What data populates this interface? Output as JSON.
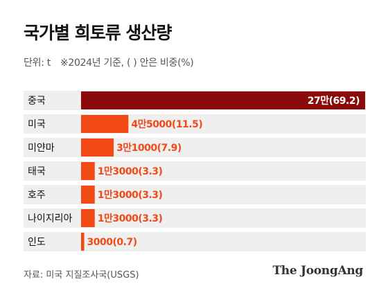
{
  "header": {
    "title": "국가별 희토류 생산량",
    "unit": "단위: t",
    "note": "※2024년 기준, ( ) 안은 비중(%)"
  },
  "footer": {
    "source": "자료: 미국 지질조사국(USGS)",
    "logo": "The JoongAng"
  },
  "colors": {
    "highlight": "#8b0b0b",
    "bar": "#f24a17",
    "row_bg": "#efefef",
    "highlight_label": "#ffffff",
    "bar_label": "#f24a17"
  },
  "chart_data": {
    "type": "bar",
    "orientation": "horizontal",
    "categories": [
      "중국",
      "미국",
      "미얀마",
      "태국",
      "호주",
      "나이지리아",
      "인도"
    ],
    "values": [
      270000,
      45000,
      31000,
      13000,
      13000,
      13000,
      3000
    ],
    "shares": [
      69.2,
      11.5,
      7.9,
      3.3,
      3.3,
      3.3,
      0.7
    ],
    "value_labels": [
      "27만(69.2)",
      "4만5000(11.5)",
      "3만1000(7.9)",
      "1만3000(3.3)",
      "1만3000(3.3)",
      "1만3000(3.3)",
      "3000(0.7)"
    ],
    "xlim": [
      0,
      270000
    ],
    "highlight_index": 0
  }
}
